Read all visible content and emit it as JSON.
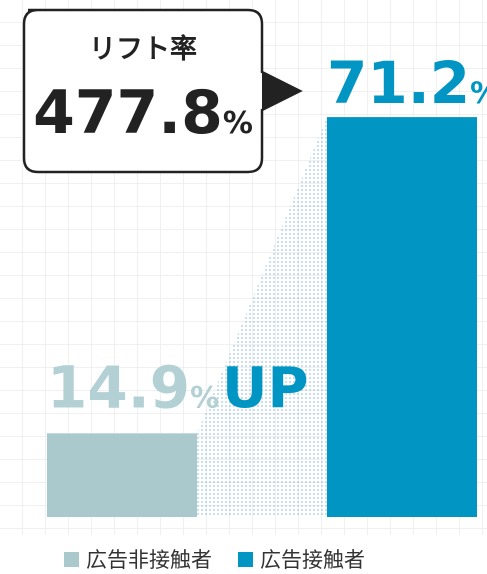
{
  "chart_data": {
    "type": "bar",
    "categories": [
      "広告非接触者",
      "広告接触者"
    ],
    "values": [
      14.9,
      71.2
    ],
    "value_labels": [
      "14.9%",
      "71.2%"
    ],
    "colors": [
      "#a9c9cd",
      "#0095c3"
    ],
    "ylim": [
      0,
      73
    ],
    "annotations": {
      "callout_title": "リフト率",
      "callout_value": "477.8%",
      "up": "UP"
    }
  }
}
